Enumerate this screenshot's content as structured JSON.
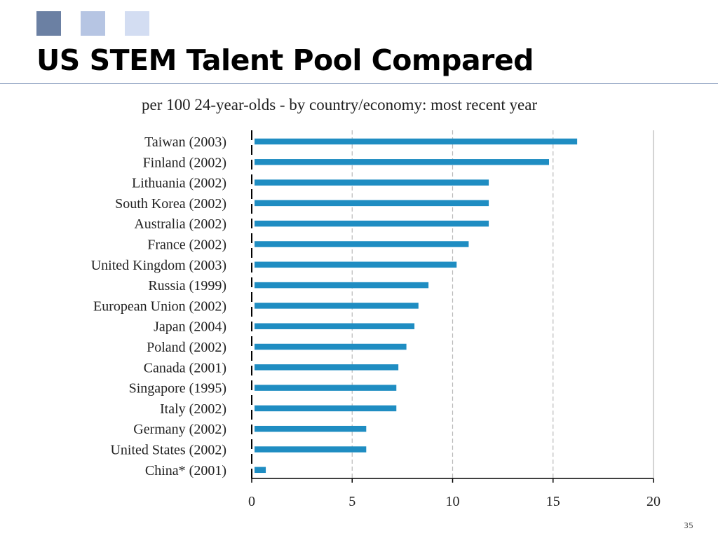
{
  "slide": {
    "title": "US STEM Talent Pool Compared",
    "page_number": "35",
    "squares": [
      "#6b80a3",
      "#b6c5e3",
      "#d3ddf2"
    ]
  },
  "chart_data": {
    "type": "bar",
    "orientation": "horizontal",
    "title": "per 100 24-year-olds - by country/economy: most recent year",
    "categories": [
      "Taiwan (2003)",
      "Finland (2002)",
      "Lithuania (2002)",
      "South Korea (2002)",
      "Australia (2002)",
      "France (2002)",
      "United Kingdom (2003)",
      "Russia (1999)",
      "European Union (2002)",
      "Japan (2004)",
      "Poland (2002)",
      "Canada (2001)",
      "Singapore (1995)",
      "Italy (2002)",
      "Germany (2002)",
      "United States (2002)",
      "China* (2001)"
    ],
    "values": [
      16.2,
      14.8,
      11.8,
      11.8,
      11.8,
      10.8,
      10.2,
      8.8,
      8.3,
      8.1,
      7.7,
      7.3,
      7.2,
      7.2,
      5.7,
      5.7,
      0.7
    ],
    "xlim": [
      0,
      20
    ],
    "xticks": [
      "0",
      "5",
      "10",
      "15",
      "20"
    ],
    "grid": true,
    "legend": "none",
    "bar_color": "#1f8dc2"
  }
}
